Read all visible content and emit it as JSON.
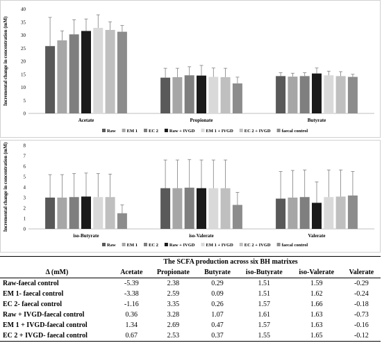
{
  "colors": [
    "#595959",
    "#a6a6a6",
    "#7f7f7f",
    "#1a1a1a",
    "#d9d9d9",
    "#bfbfbf",
    "#8c8c8c"
  ],
  "chart_data": [
    {
      "type": "bar",
      "ylabel": "Incremental change in concentration (mM)",
      "ylim": [
        0,
        40
      ],
      "yticks": [
        0,
        5,
        10,
        15,
        20,
        25,
        30,
        35,
        40
      ],
      "grid": false,
      "legend_position": "bottom",
      "categories": [
        "Acetate",
        "Propionate",
        "Butyrate"
      ],
      "series": [
        {
          "name": "Raw",
          "values": [
            25.8,
            13.7,
            14.3
          ],
          "errors": [
            11.0,
            3.6,
            1.3
          ]
        },
        {
          "name": "EM 1",
          "values": [
            28.0,
            13.9,
            14.1
          ],
          "errors": [
            3.6,
            3.4,
            1.3
          ]
        },
        {
          "name": "EC 2",
          "values": [
            30.3,
            14.6,
            14.3
          ],
          "errors": [
            5.6,
            3.3,
            1.3
          ]
        },
        {
          "name": "Raw + IVGD",
          "values": [
            31.6,
            14.5,
            15.3
          ],
          "errors": [
            4.6,
            3.9,
            2.1
          ]
        },
        {
          "name": "EM 1 + IVGD",
          "values": [
            32.8,
            14.0,
            14.6
          ],
          "errors": [
            5.0,
            3.4,
            1.6
          ]
        },
        {
          "name": "EC 2 + IVGD",
          "values": [
            32.0,
            13.9,
            14.3
          ],
          "errors": [
            3.1,
            3.4,
            1.7
          ]
        },
        {
          "name": "faecal control",
          "values": [
            31.3,
            11.5,
            14.0
          ],
          "errors": [
            2.4,
            2.4,
            1.0
          ]
        }
      ]
    },
    {
      "type": "bar",
      "ylabel": "Incremental change in concentration (mM)",
      "ylim": [
        0,
        8
      ],
      "yticks": [
        0,
        1,
        2,
        3,
        4,
        5,
        6,
        7,
        8
      ],
      "grid": false,
      "legend_position": "bottom",
      "categories": [
        "iso-Butyrate",
        "iso-Valerate",
        "Valerate"
      ],
      "series": [
        {
          "name": "Raw",
          "values": [
            3.0,
            3.9,
            2.9
          ],
          "errors": [
            2.2,
            2.7,
            2.6
          ]
        },
        {
          "name": "EM 1",
          "values": [
            3.0,
            3.9,
            3.0
          ],
          "errors": [
            2.2,
            2.7,
            2.6
          ]
        },
        {
          "name": "EC 2",
          "values": [
            3.05,
            3.95,
            3.05
          ],
          "errors": [
            2.25,
            2.7,
            2.6
          ]
        },
        {
          "name": "Raw + IVGD",
          "values": [
            3.1,
            3.9,
            2.5
          ],
          "errors": [
            2.25,
            2.7,
            2.0
          ]
        },
        {
          "name": "EM 1 + IVGD",
          "values": [
            3.05,
            3.9,
            3.05
          ],
          "errors": [
            2.25,
            2.7,
            2.6
          ]
        },
        {
          "name": "EC 2 + IVGD",
          "values": [
            3.05,
            3.9,
            3.1
          ],
          "errors": [
            2.2,
            2.7,
            2.55
          ]
        },
        {
          "name": "faecal control",
          "values": [
            1.5,
            2.3,
            3.2
          ],
          "errors": [
            0.8,
            1.2,
            2.3
          ]
        }
      ]
    }
  ],
  "table": {
    "caption": "The SCFA production across six BH matrixes",
    "row_header": "Δ (mM)",
    "columns": [
      "Acetate",
      "Propionate",
      "Butyrate",
      "iso-Butyrate",
      "iso-Valerate",
      "Valerate"
    ],
    "rows": [
      {
        "label": "Raw-faecal control",
        "values": [
          "-5.39",
          "2.38",
          "0.29",
          "1.51",
          "1.59",
          "-0.29"
        ]
      },
      {
        "label": "EM 1- faecal control",
        "values": [
          "-3.38",
          "2.59",
          "0.09",
          "1.51",
          "1.62",
          "-0.24"
        ]
      },
      {
        "label": "EC 2- faecal control",
        "values": [
          "-1.16",
          "3.35",
          "0.26",
          "1.57",
          "1.66",
          "-0.18"
        ]
      },
      {
        "label": "Raw + IVGD-faecal control",
        "values": [
          "0.36",
          "3.28",
          "1.07",
          "1.61",
          "1.63",
          "-0.73"
        ]
      },
      {
        "label": "EM 1 + IVGD-faecal control",
        "values": [
          "1.34",
          "2.69",
          "0.47",
          "1.57",
          "1.63",
          "-0.16"
        ]
      },
      {
        "label": "EC 2 + IVGD- faecal control",
        "values": [
          "0.67",
          "2.53",
          "0.37",
          "1.55",
          "1.65",
          "-0.12"
        ]
      }
    ]
  }
}
